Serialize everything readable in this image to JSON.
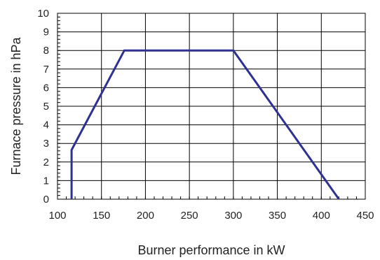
{
  "chart_data": {
    "type": "line",
    "title": "",
    "xlabel": "Burner performance in kW",
    "ylabel": "Furnace pressure in hPa",
    "xlim": [
      100,
      450
    ],
    "ylim": [
      0,
      10
    ],
    "x_ticks": [
      100,
      150,
      200,
      250,
      300,
      350,
      400,
      450
    ],
    "y_ticks": [
      0,
      1,
      2,
      3,
      4,
      5,
      6,
      7,
      8,
      9,
      10
    ],
    "x_minor_step": 10,
    "y_minor_step": 0.2,
    "grid": true,
    "series": [
      {
        "x": [
          116,
          116,
          176,
          300,
          420
        ],
        "y": [
          0,
          2.65,
          8,
          8,
          0
        ]
      }
    ],
    "colors": {
      "line": "#2e3192",
      "grid": "#000000",
      "text": "#222222"
    }
  }
}
